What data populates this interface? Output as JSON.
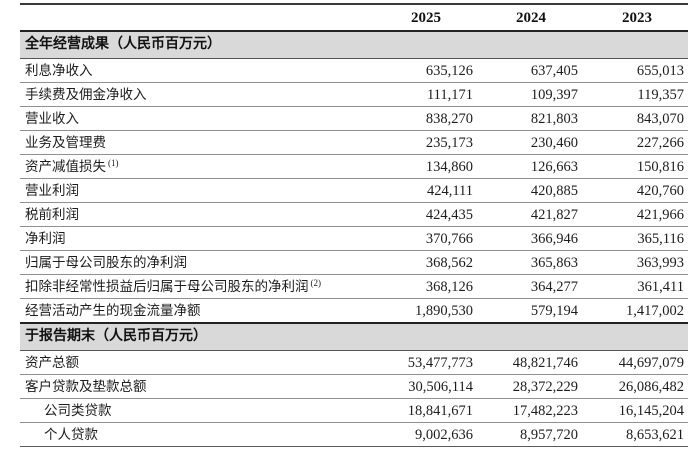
{
  "colors": {
    "section_band_bg": "#d9d9d9",
    "rule_thin": "#909090",
    "rule_thick": "#222222",
    "text": "#1c1c1c"
  },
  "table": {
    "columns": [
      "2025",
      "2024",
      "2023"
    ],
    "sections": [
      {
        "header": "全年经营成果（人民币百万元）",
        "rows": [
          {
            "label": "利息净收入",
            "note": "",
            "values": [
              "635,126",
              "637,405",
              "655,013"
            ]
          },
          {
            "label": "手续费及佣金净收入",
            "note": "",
            "values": [
              "111,171",
              "109,397",
              "119,357"
            ]
          },
          {
            "label": "营业收入",
            "note": "",
            "values": [
              "838,270",
              "821,803",
              "843,070"
            ]
          },
          {
            "label": "业务及管理费",
            "note": "",
            "values": [
              "235,173",
              "230,460",
              "227,266"
            ]
          },
          {
            "label": "资产减值损失",
            "note": "(1)",
            "values": [
              "134,860",
              "126,663",
              "150,816"
            ]
          },
          {
            "label": "营业利润",
            "note": "",
            "values": [
              "424,111",
              "420,885",
              "420,760"
            ]
          },
          {
            "label": "税前利润",
            "note": "",
            "values": [
              "424,435",
              "421,827",
              "421,966"
            ]
          },
          {
            "label": "净利润",
            "note": "",
            "values": [
              "370,766",
              "366,946",
              "365,116"
            ]
          },
          {
            "label": "归属于母公司股东的净利润",
            "note": "",
            "values": [
              "368,562",
              "365,863",
              "363,993"
            ]
          },
          {
            "label": "扣除非经常性损益后归属于母公司股东的净利润",
            "note": "(2)",
            "values": [
              "368,126",
              "364,277",
              "361,411"
            ]
          },
          {
            "label": "经营活动产生的现金流量净额",
            "note": "",
            "values": [
              "1,890,530",
              "579,194",
              "1,417,002"
            ]
          }
        ]
      },
      {
        "header": "于报告期末（人民币百万元）",
        "rows": [
          {
            "label": "资产总额",
            "note": "",
            "values": [
              "53,477,773",
              "48,821,746",
              "44,697,079"
            ]
          },
          {
            "label": "客户贷款及垫款总额",
            "note": "",
            "values": [
              "30,506,114",
              "28,372,229",
              "26,086,482"
            ]
          },
          {
            "label": "公司类贷款",
            "note": "",
            "values": [
              "18,841,671",
              "17,482,223",
              "16,145,204"
            ]
          },
          {
            "label": "个人贷款",
            "note": "",
            "values": [
              "9,002,636",
              "8,957,720",
              "8,653,621"
            ]
          }
        ]
      }
    ]
  }
}
